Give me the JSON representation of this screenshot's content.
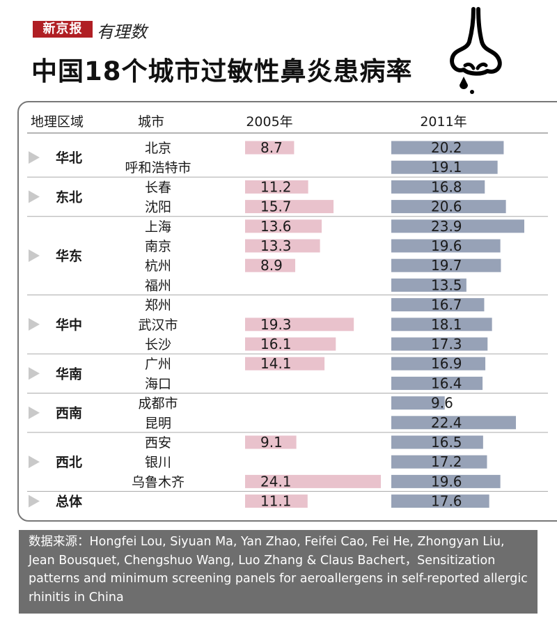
{
  "brand": {
    "name": "新京报",
    "column": "有理数"
  },
  "title": "中国18个城市过敏性鼻炎患病率",
  "icon": "nose-icon",
  "colors": {
    "brand_red": "#b01f24",
    "bar_2005": "#e9c2cc",
    "bar_2011": "#97a2b7",
    "source_bg": "#6e6e6e"
  },
  "chart_data": {
    "type": "bar",
    "columns": [
      "地理区域",
      "城市",
      "2005年",
      "2011年"
    ],
    "groups": [
      {
        "region": "华北",
        "rows": [
          {
            "city": "北京",
            "v2005": 8.7,
            "v2011": 20.2
          },
          {
            "city": "呼和浩特市",
            "v2005": null,
            "v2011": 19.1
          }
        ]
      },
      {
        "region": "东北",
        "rows": [
          {
            "city": "长春",
            "v2005": 11.2,
            "v2011": 16.8
          },
          {
            "city": "沈阳",
            "v2005": 15.7,
            "v2011": 20.6
          }
        ]
      },
      {
        "region": "华东",
        "rows": [
          {
            "city": "上海",
            "v2005": 13.6,
            "v2011": 23.9
          },
          {
            "city": "南京",
            "v2005": 13.3,
            "v2011": 19.6
          },
          {
            "city": "杭州",
            "v2005": 8.9,
            "v2011": 19.7
          },
          {
            "city": "福州",
            "v2005": null,
            "v2011": 13.5
          }
        ]
      },
      {
        "region": "华中",
        "rows": [
          {
            "city": "郑州",
            "v2005": null,
            "v2011": 16.7
          },
          {
            "city": "武汉市",
            "v2005": 19.3,
            "v2011": 18.1
          },
          {
            "city": "长沙",
            "v2005": 16.1,
            "v2011": 17.3
          }
        ]
      },
      {
        "region": "华南",
        "rows": [
          {
            "city": "广州",
            "v2005": 14.1,
            "v2011": 16.9
          },
          {
            "city": "海口",
            "v2005": null,
            "v2011": 16.4
          }
        ]
      },
      {
        "region": "西南",
        "rows": [
          {
            "city": "成都市",
            "v2005": null,
            "v2011": 9.6
          },
          {
            "city": "昆明",
            "v2005": null,
            "v2011": 22.4
          }
        ]
      },
      {
        "region": "西北",
        "rows": [
          {
            "city": "西安",
            "v2005": 9.1,
            "v2011": 16.5
          },
          {
            "city": "银川",
            "v2005": null,
            "v2011": 17.2
          },
          {
            "city": "乌鲁木齐",
            "v2005": 24.1,
            "v2011": 19.6
          }
        ]
      },
      {
        "region": "总体",
        "rows": [
          {
            "city": "",
            "v2005": 11.1,
            "v2011": 17.6
          }
        ]
      }
    ]
  },
  "source": "数据来源：Hongfei Lou, Siyuan Ma, Yan Zhao, Feifei Cao, Fei He, Zhongyan Liu, Jean Bousquet, Chengshuo Wang, Luo Zhang & Claus Bachert，Sensitization patterns and minimum screening panels for aeroallergens in self-reported allergic rhinitis in China"
}
